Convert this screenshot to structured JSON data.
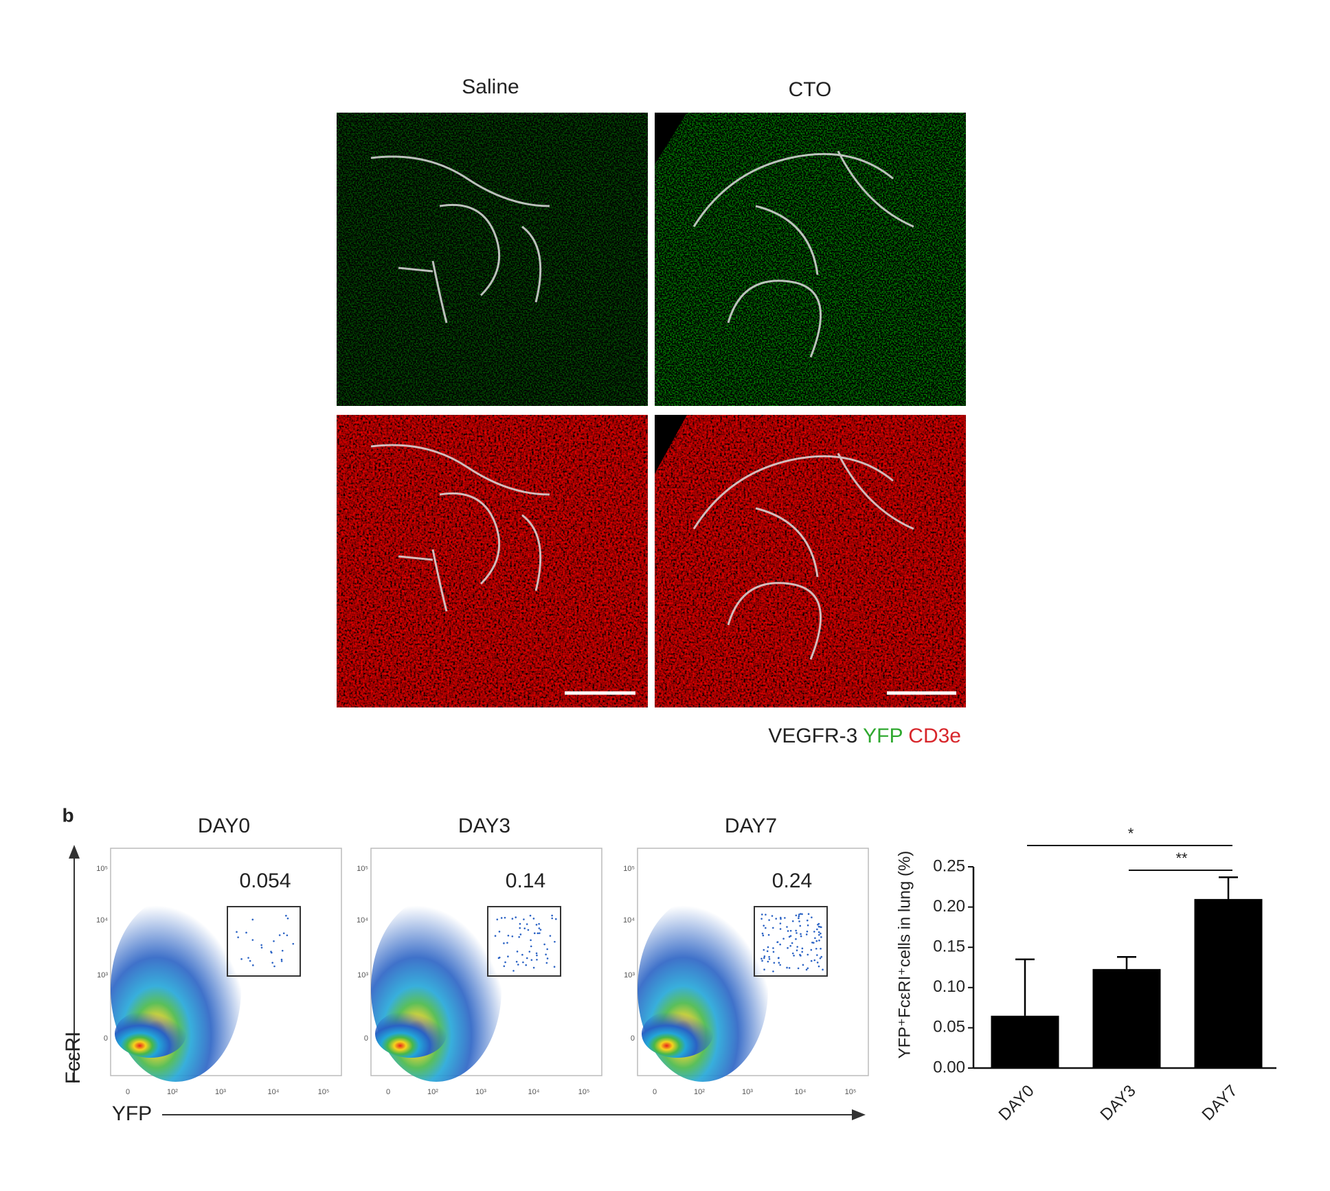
{
  "panel_a": {
    "columns": [
      "Saline",
      "CTO"
    ],
    "legend": [
      "VEGFR-3",
      "YFP",
      "CD3e"
    ]
  },
  "panel_b": {
    "label": "b",
    "flow": {
      "titles": [
        "DAY0",
        "DAY3",
        "DAY7"
      ],
      "gate_values": [
        0.054,
        0.14,
        0.24
      ],
      "y_label": "FcεRI",
      "x_label": "YFP",
      "x_ticks": [
        "0",
        "10²",
        "10³",
        "10⁴",
        "10⁵"
      ],
      "y_ticks": [
        "0",
        "10³",
        "10⁴",
        "10⁵"
      ]
    }
  },
  "chart_data": {
    "type": "bar",
    "y_label": "YFP⁺FcεRI⁺cells in lung (%)",
    "categories": [
      "DAY0",
      "DAY3",
      "DAY7"
    ],
    "values": [
      0.065,
      0.123,
      0.21
    ],
    "errors": [
      0.07,
      0.015,
      0.027
    ],
    "color": "#000000",
    "ylim": [
      0,
      0.25
    ],
    "yticks": [
      {
        "value": 0,
        "label": "0.00"
      },
      {
        "value": 0.05,
        "label": "0.05"
      },
      {
        "value": 0.1,
        "label": "0.10"
      },
      {
        "value": 0.15,
        "label": "0.15"
      },
      {
        "value": 0.2,
        "label": "0.20"
      },
      {
        "value": 0.25,
        "label": "0.25"
      }
    ],
    "annotations": [
      "*",
      "**"
    ]
  }
}
